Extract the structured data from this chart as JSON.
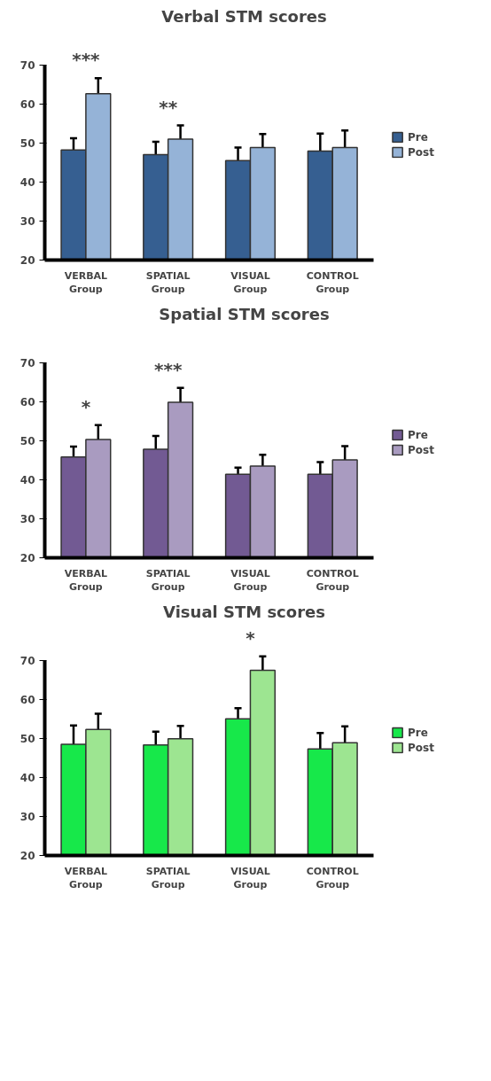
{
  "chart_data": [
    {
      "type": "bar",
      "title": "Verbal STM scores",
      "categories": [
        "VERBAL\nGroup",
        "SPATIAL\nGroup",
        "VISUAL\nGroup",
        "CONTROL\nGroup"
      ],
      "ylim": [
        20,
        70
      ],
      "yticks": [
        20,
        30,
        40,
        50,
        60,
        70
      ],
      "legend": "right",
      "grid": false,
      "series": [
        {
          "name": "Pre",
          "color": "#365f91",
          "values": [
            48.2,
            47.0,
            45.5,
            47.9
          ],
          "errors": [
            3.0,
            3.3,
            3.3,
            4.5
          ]
        },
        {
          "name": "Post",
          "color": "#95b3d7",
          "values": [
            62.6,
            51.0,
            48.8,
            48.8
          ],
          "errors": [
            4.0,
            3.5,
            3.5,
            4.4
          ]
        }
      ],
      "annotations": [
        "***",
        "**"
      ]
    },
    {
      "type": "bar",
      "title": "Spatial STM scores",
      "categories": [
        "VERBAL\nGroup",
        "SPATIAL\nGroup",
        "VISUAL\nGroup",
        "CONTROL\nGroup"
      ],
      "ylim": [
        20,
        70
      ],
      "yticks": [
        20,
        30,
        40,
        50,
        60,
        70
      ],
      "legend": "right",
      "grid": false,
      "series": [
        {
          "name": "Pre",
          "color": "#725a93",
          "values": [
            45.8,
            47.8,
            41.4,
            41.4
          ],
          "errors": [
            2.7,
            3.4,
            1.7,
            3.1
          ]
        },
        {
          "name": "Post",
          "color": "#a99bc0",
          "values": [
            50.3,
            59.8,
            43.5,
            45.1
          ],
          "errors": [
            3.7,
            3.7,
            2.9,
            3.5
          ]
        }
      ],
      "annotations": [
        "*",
        "***"
      ]
    },
    {
      "type": "bar",
      "title": "Visual STM scores",
      "categories": [
        "VERBAL\nGroup",
        "SPATIAL\nGroup",
        "VISUAL\nGroup",
        "CONTROL\nGroup"
      ],
      "ylim": [
        20,
        70
      ],
      "yticks": [
        20,
        30,
        40,
        50,
        60,
        70
      ],
      "legend": "right",
      "grid": false,
      "series": [
        {
          "name": "Pre",
          "color": "#17e84a",
          "values": [
            48.5,
            48.3,
            55.0,
            47.3
          ],
          "errors": [
            4.8,
            3.4,
            2.7,
            4.1
          ]
        },
        {
          "name": "Post",
          "color": "#9de591",
          "values": [
            52.3,
            49.9,
            67.4,
            48.9
          ],
          "errors": [
            4.0,
            3.3,
            3.6,
            4.2
          ]
        }
      ],
      "annotations": [
        "*"
      ]
    }
  ]
}
